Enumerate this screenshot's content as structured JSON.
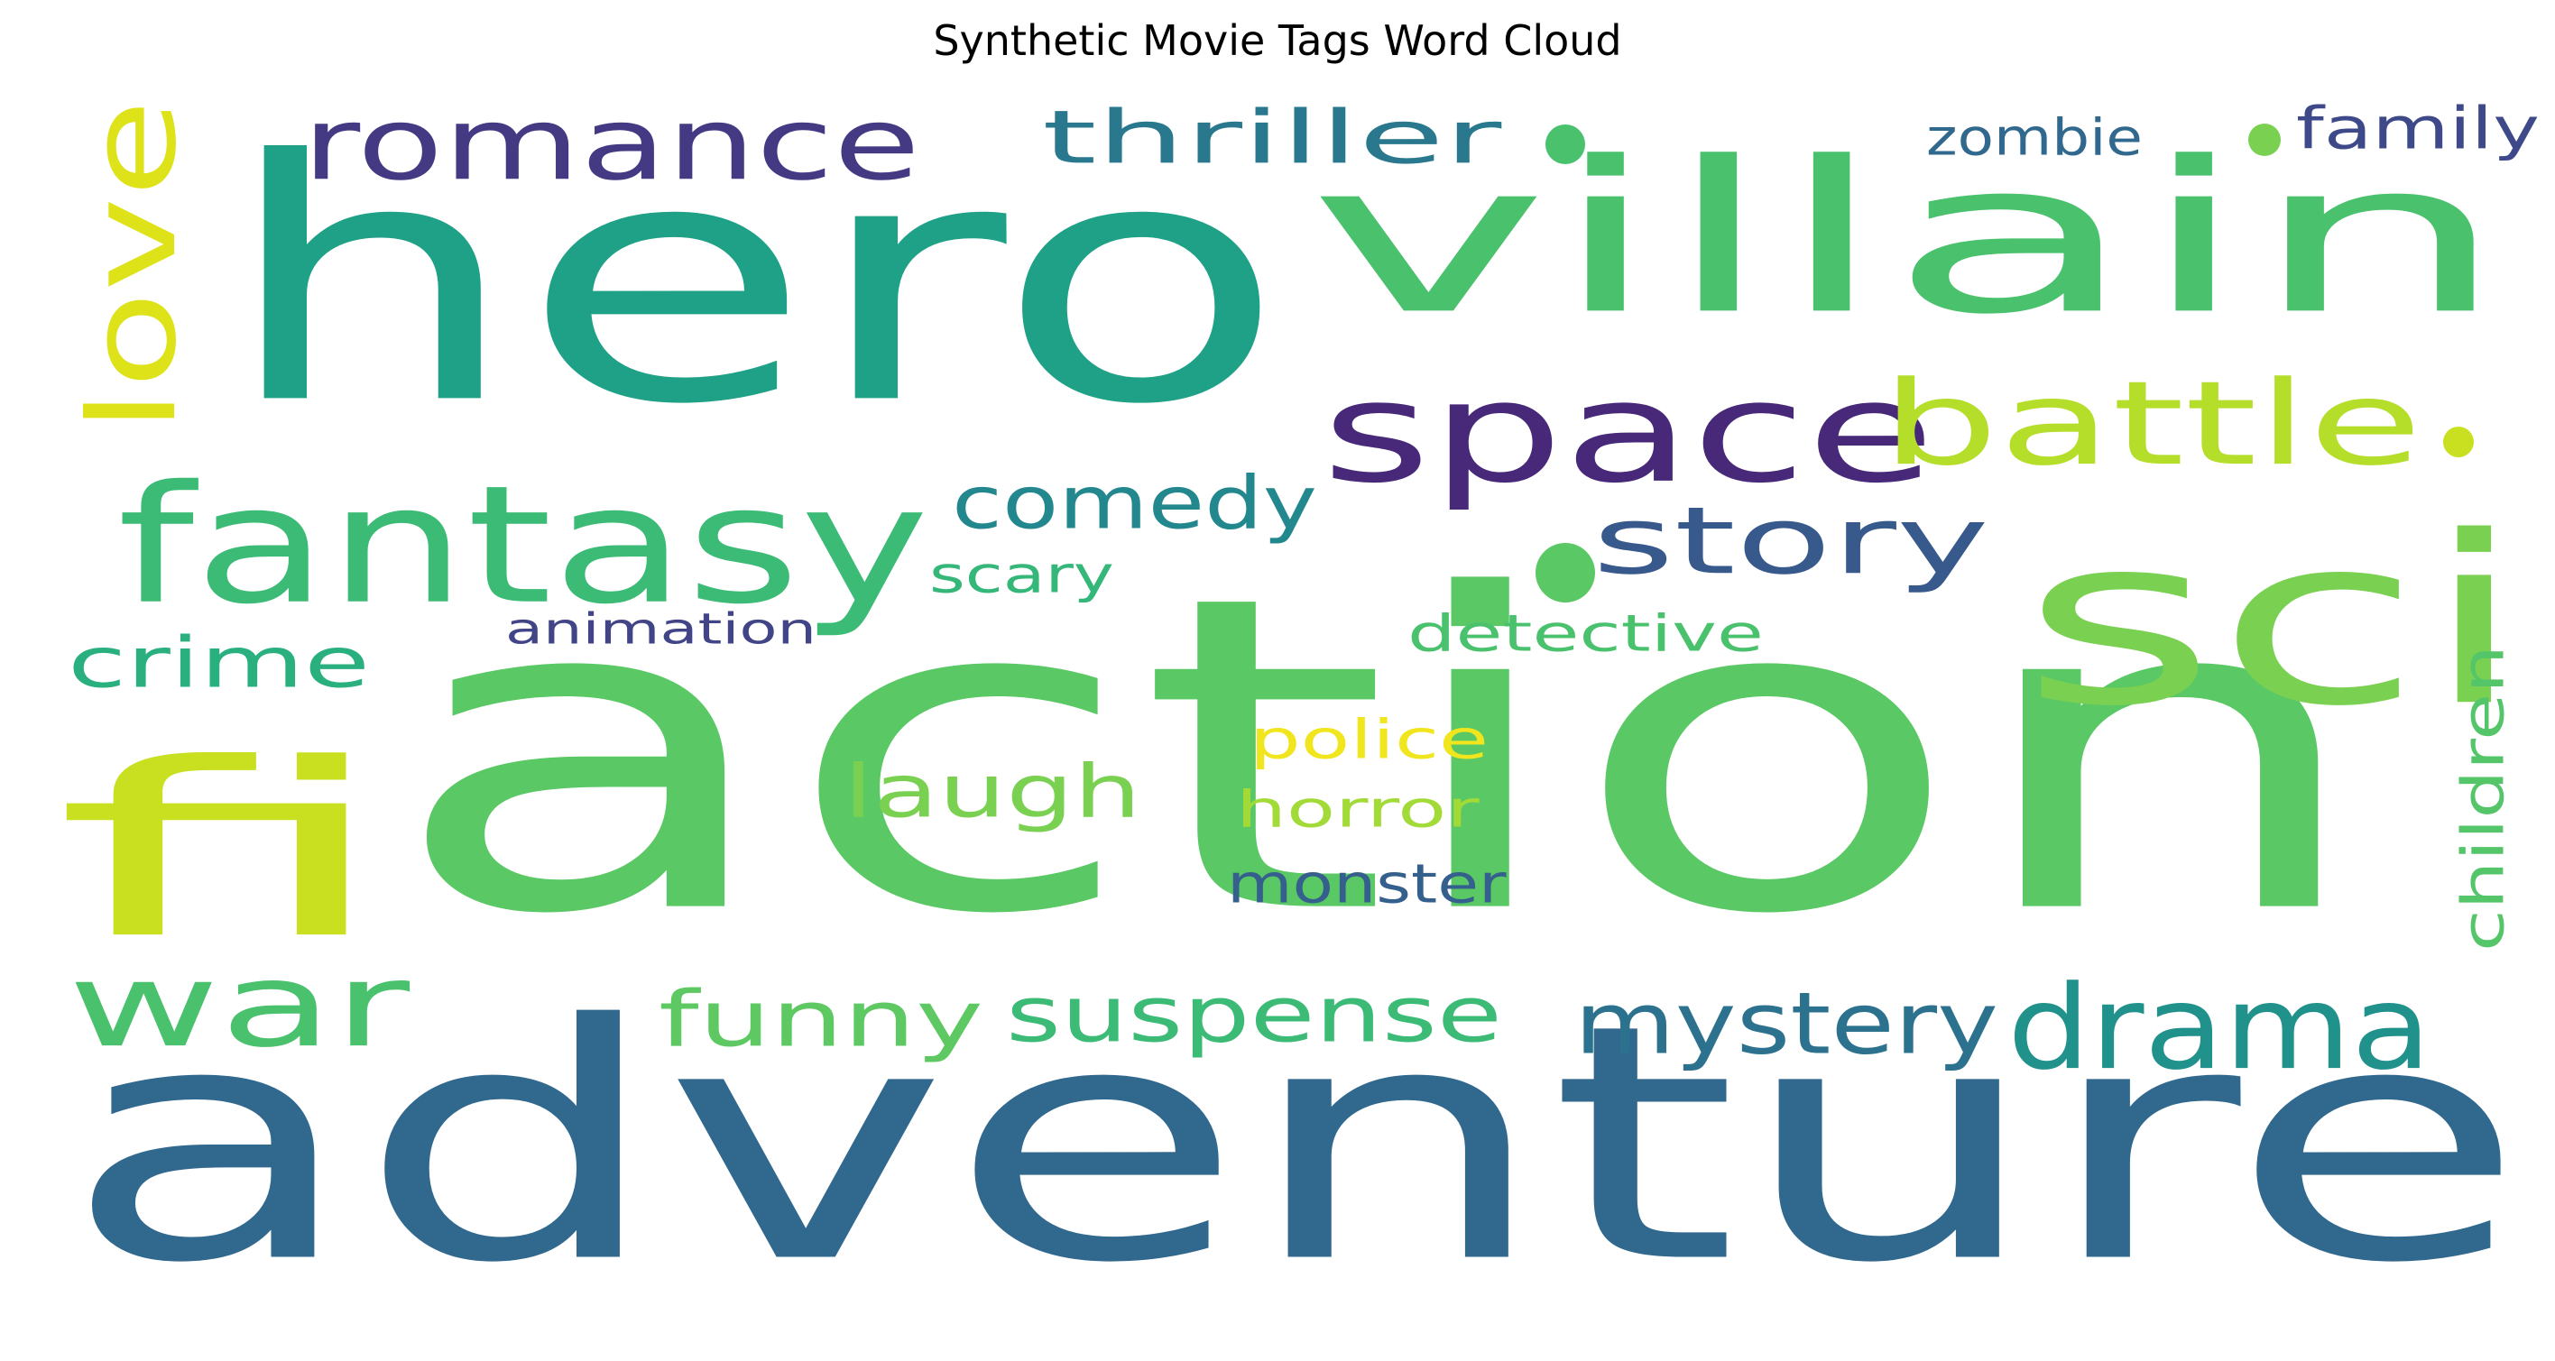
{
  "chart_data": {
    "type": "wordcloud",
    "title": "Synthetic Movie Tags Word Cloud",
    "words": [
      {
        "text": "action",
        "weight": 100,
        "color": "#5ac864",
        "vertical": false
      },
      {
        "text": "adventure",
        "weight": 92,
        "color": "#31688e",
        "vertical": false
      },
      {
        "text": "hero",
        "weight": 88,
        "color": "#1fa187",
        "vertical": false
      },
      {
        "text": "villain",
        "weight": 70,
        "color": "#4ac16d",
        "vertical": false
      },
      {
        "text": "fi",
        "weight": 64,
        "color": "#c8e020",
        "vertical": false
      },
      {
        "text": "sci",
        "weight": 60,
        "color": "#7ad151",
        "vertical": false
      },
      {
        "text": "space",
        "weight": 48,
        "color": "#482878",
        "vertical": false
      },
      {
        "text": "fantasy",
        "weight": 46,
        "color": "#3bbb75",
        "vertical": false
      },
      {
        "text": "battle",
        "weight": 38,
        "color": "#b5de2b",
        "vertical": false
      },
      {
        "text": "romance",
        "weight": 34,
        "color": "#443983",
        "vertical": false
      },
      {
        "text": "war",
        "weight": 34,
        "color": "#4ac16d",
        "vertical": false
      },
      {
        "text": "drama",
        "weight": 33,
        "color": "#21918c",
        "vertical": false
      },
      {
        "text": "story",
        "weight": 32,
        "color": "#38598c",
        "vertical": false
      },
      {
        "text": "love",
        "weight": 30,
        "color": "#dde318",
        "vertical": true
      },
      {
        "text": "mystery",
        "weight": 25,
        "color": "#2c728e",
        "vertical": false
      },
      {
        "text": "suspense",
        "weight": 25,
        "color": "#3bbb75",
        "vertical": false
      },
      {
        "text": "funny",
        "weight": 24,
        "color": "#5ec962",
        "vertical": false
      },
      {
        "text": "thriller",
        "weight": 23,
        "color": "#2a788e",
        "vertical": false
      },
      {
        "text": "laugh",
        "weight": 23,
        "color": "#7ad151",
        "vertical": false
      },
      {
        "text": "comedy",
        "weight": 22,
        "color": "#23888e",
        "vertical": false
      },
      {
        "text": "crime",
        "weight": 21,
        "color": "#2ab07f",
        "vertical": false
      },
      {
        "text": "scary",
        "weight": 15,
        "color": "#35b779",
        "vertical": false
      },
      {
        "text": "detective",
        "weight": 15,
        "color": "#4ac16d",
        "vertical": false
      },
      {
        "text": "children",
        "weight": 14,
        "color": "#54c568",
        "vertical": true
      },
      {
        "text": "police",
        "weight": 15,
        "color": "#f1e51d",
        "vertical": false
      },
      {
        "text": "horror",
        "weight": 15,
        "color": "#a2da37",
        "vertical": false
      },
      {
        "text": "monster",
        "weight": 15,
        "color": "#355f8d",
        "vertical": false
      },
      {
        "text": "zombie",
        "weight": 14,
        "color": "#31688e",
        "vertical": false
      },
      {
        "text": "family",
        "weight": 14,
        "color": "#3e4989",
        "vertical": false
      },
      {
        "text": "animation",
        "weight": 12,
        "color": "#414487",
        "vertical": false
      }
    ],
    "background": "#ffffff",
    "colormap": "viridis"
  }
}
